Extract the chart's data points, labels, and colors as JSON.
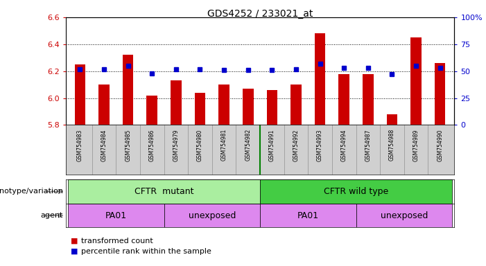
{
  "title": "GDS4252 / 233021_at",
  "samples": [
    "GSM754983",
    "GSM754984",
    "GSM754985",
    "GSM754986",
    "GSM754979",
    "GSM754980",
    "GSM754981",
    "GSM754982",
    "GSM754991",
    "GSM754992",
    "GSM754993",
    "GSM754994",
    "GSM754987",
    "GSM754988",
    "GSM754989",
    "GSM754990"
  ],
  "transformed_count": [
    6.25,
    6.1,
    6.32,
    6.02,
    6.13,
    6.04,
    6.1,
    6.07,
    6.06,
    6.1,
    6.48,
    6.18,
    6.18,
    5.88,
    6.45,
    6.26
  ],
  "percentile_rank": [
    52,
    52,
    55,
    48,
    52,
    52,
    51,
    51,
    51,
    52,
    57,
    53,
    53,
    47,
    55,
    53
  ],
  "ylim": [
    5.8,
    6.6
  ],
  "y_ticks": [
    5.8,
    6.0,
    6.2,
    6.4,
    6.6
  ],
  "right_ylim": [
    0,
    100
  ],
  "right_yticks": [
    0,
    25,
    50,
    75,
    100
  ],
  "right_yticklabels": [
    "0",
    "25",
    "50",
    "75",
    "100%"
  ],
  "bar_color": "#cc0000",
  "dot_color": "#0000cc",
  "bar_width": 0.45,
  "base_value": 5.8,
  "genotype_mutant_color": "#aaeea0",
  "genotype_wt_color": "#44cc44",
  "agent_color": "#dd88ee",
  "sample_bg_color": "#d0d0d0",
  "genotype_label": "genotype/variation",
  "agent_label": "agent",
  "cftr_mutant_label": "CFTR  mutant",
  "cftr_wt_label": "CFTR wild type",
  "pa01_label": "PA01",
  "unexposed_label": "unexposed",
  "legend_bar_label": "transformed count",
  "legend_dot_label": "percentile rank within the sample"
}
